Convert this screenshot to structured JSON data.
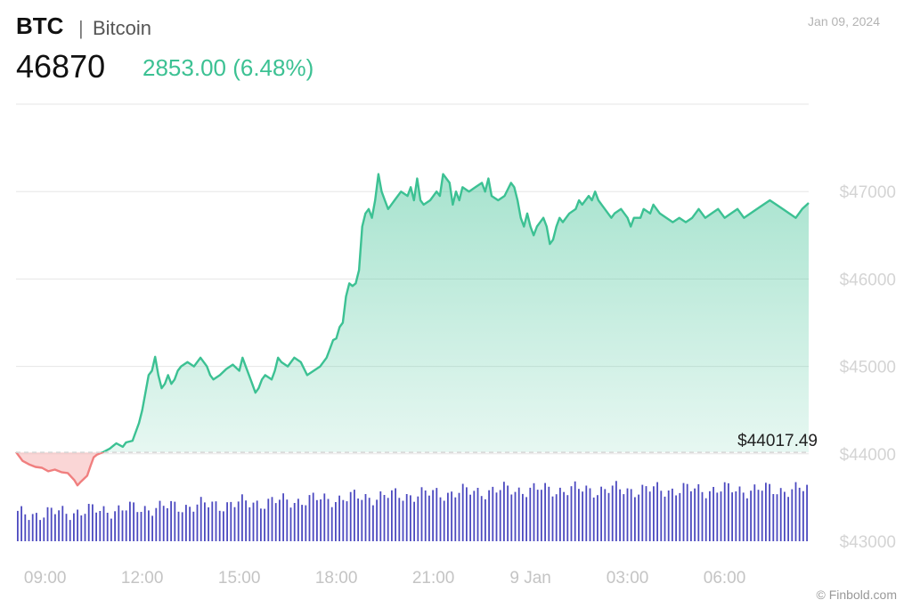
{
  "header": {
    "ticker": "BTC",
    "separator": "|",
    "name": "Bitcoin",
    "price": "46870",
    "change": "2853.00 (6.48%)",
    "date": "Jan 09, 2024"
  },
  "footer": {
    "credit": "© Finbold.com"
  },
  "colors": {
    "up": "#3cc193",
    "down": "#f07f7f",
    "volume": "#4c4ac0",
    "grid": "#e6e6e6"
  },
  "chart_data": {
    "type": "area",
    "title": "",
    "xlabel": "",
    "ylabel": "",
    "ylim": [
      43000,
      48000
    ],
    "grid": true,
    "legend": "none",
    "y_ticks": [
      {
        "value": 47000,
        "label": "$47000"
      },
      {
        "value": 46000,
        "label": "$46000"
      },
      {
        "value": 45000,
        "label": "$45000"
      },
      {
        "value": 44000,
        "label": "$44000"
      },
      {
        "value": 43000,
        "label": "$43000"
      }
    ],
    "x_ticks": [
      {
        "hours": 9,
        "label": "09:00"
      },
      {
        "hours": 12,
        "label": "12:00"
      },
      {
        "hours": 15,
        "label": "15:00"
      },
      {
        "hours": 18,
        "label": "18:00"
      },
      {
        "hours": 21,
        "label": "21:00"
      },
      {
        "hours": 24,
        "label": "9 Jan"
      },
      {
        "hours": 27,
        "label": "03:00"
      },
      {
        "hours": 30,
        "label": "06:00"
      }
    ],
    "x_range": [
      8.1,
      32.6
    ],
    "reference": {
      "value": 44017.49,
      "label": "$44017.49"
    },
    "series": [
      {
        "points": [
          [
            8.1,
            44020
          ],
          [
            8.3,
            43920
          ],
          [
            8.5,
            43880
          ],
          [
            8.7,
            43850
          ],
          [
            8.9,
            43840
          ],
          [
            9.1,
            43800
          ],
          [
            9.3,
            43820
          ],
          [
            9.5,
            43790
          ],
          [
            9.7,
            43780
          ],
          [
            9.9,
            43700
          ],
          [
            10.0,
            43640
          ],
          [
            10.1,
            43680
          ],
          [
            10.3,
            43750
          ],
          [
            10.4,
            43860
          ],
          [
            10.5,
            43960
          ],
          [
            10.6,
            43990
          ],
          [
            10.8,
            44020
          ],
          [
            11.0,
            44060
          ],
          [
            11.2,
            44120
          ],
          [
            11.4,
            44080
          ],
          [
            11.5,
            44130
          ],
          [
            11.7,
            44150
          ],
          [
            11.9,
            44350
          ],
          [
            12.0,
            44500
          ],
          [
            12.1,
            44700
          ],
          [
            12.2,
            44900
          ],
          [
            12.3,
            44950
          ],
          [
            12.4,
            45110
          ],
          [
            12.5,
            44900
          ],
          [
            12.6,
            44750
          ],
          [
            12.7,
            44800
          ],
          [
            12.8,
            44900
          ],
          [
            12.9,
            44800
          ],
          [
            13.0,
            44850
          ],
          [
            13.1,
            44950
          ],
          [
            13.2,
            45000
          ],
          [
            13.4,
            45050
          ],
          [
            13.6,
            45000
          ],
          [
            13.8,
            45100
          ],
          [
            13.9,
            45050
          ],
          [
            14.0,
            45000
          ],
          [
            14.1,
            44900
          ],
          [
            14.2,
            44850
          ],
          [
            14.4,
            44900
          ],
          [
            14.6,
            44970
          ],
          [
            14.8,
            45020
          ],
          [
            15.0,
            44950
          ],
          [
            15.1,
            45100
          ],
          [
            15.2,
            45000
          ],
          [
            15.3,
            44900
          ],
          [
            15.4,
            44800
          ],
          [
            15.5,
            44700
          ],
          [
            15.6,
            44750
          ],
          [
            15.7,
            44850
          ],
          [
            15.8,
            44900
          ],
          [
            16.0,
            44850
          ],
          [
            16.1,
            44950
          ],
          [
            16.2,
            45100
          ],
          [
            16.3,
            45050
          ],
          [
            16.5,
            45000
          ],
          [
            16.7,
            45100
          ],
          [
            16.9,
            45050
          ],
          [
            17.1,
            44900
          ],
          [
            17.3,
            44950
          ],
          [
            17.5,
            45000
          ],
          [
            17.7,
            45100
          ],
          [
            17.8,
            45200
          ],
          [
            17.9,
            45300
          ],
          [
            18.0,
            45320
          ],
          [
            18.1,
            45450
          ],
          [
            18.2,
            45500
          ],
          [
            18.3,
            45800
          ],
          [
            18.4,
            45950
          ],
          [
            18.5,
            45920
          ],
          [
            18.6,
            45950
          ],
          [
            18.7,
            46100
          ],
          [
            18.8,
            46600
          ],
          [
            18.9,
            46750
          ],
          [
            19.0,
            46800
          ],
          [
            19.1,
            46700
          ],
          [
            19.2,
            46900
          ],
          [
            19.3,
            47200
          ],
          [
            19.4,
            47000
          ],
          [
            19.5,
            46900
          ],
          [
            19.6,
            46800
          ],
          [
            19.7,
            46850
          ],
          [
            19.8,
            46900
          ],
          [
            20.0,
            47000
          ],
          [
            20.2,
            46950
          ],
          [
            20.3,
            47050
          ],
          [
            20.4,
            46900
          ],
          [
            20.5,
            47150
          ],
          [
            20.6,
            46900
          ],
          [
            20.7,
            46850
          ],
          [
            20.9,
            46900
          ],
          [
            21.1,
            47000
          ],
          [
            21.2,
            46950
          ],
          [
            21.3,
            47200
          ],
          [
            21.5,
            47100
          ],
          [
            21.6,
            46850
          ],
          [
            21.7,
            47000
          ],
          [
            21.8,
            46900
          ],
          [
            21.9,
            47050
          ],
          [
            22.1,
            47000
          ],
          [
            22.3,
            47050
          ],
          [
            22.5,
            47100
          ],
          [
            22.6,
            47000
          ],
          [
            22.7,
            47150
          ],
          [
            22.8,
            46950
          ],
          [
            23.0,
            46900
          ],
          [
            23.2,
            46950
          ],
          [
            23.4,
            47100
          ],
          [
            23.5,
            47050
          ],
          [
            23.6,
            46900
          ],
          [
            23.7,
            46700
          ],
          [
            23.8,
            46600
          ],
          [
            23.9,
            46750
          ],
          [
            24.0,
            46600
          ],
          [
            24.1,
            46500
          ],
          [
            24.2,
            46600
          ],
          [
            24.4,
            46700
          ],
          [
            24.5,
            46600
          ],
          [
            24.6,
            46400
          ],
          [
            24.7,
            46450
          ],
          [
            24.8,
            46600
          ],
          [
            24.9,
            46700
          ],
          [
            25.0,
            46650
          ],
          [
            25.2,
            46750
          ],
          [
            25.4,
            46800
          ],
          [
            25.5,
            46900
          ],
          [
            25.6,
            46850
          ],
          [
            25.8,
            46950
          ],
          [
            25.9,
            46900
          ],
          [
            26.0,
            47000
          ],
          [
            26.1,
            46900
          ],
          [
            26.2,
            46850
          ],
          [
            26.3,
            46800
          ],
          [
            26.5,
            46700
          ],
          [
            26.6,
            46750
          ],
          [
            26.8,
            46800
          ],
          [
            27.0,
            46700
          ],
          [
            27.1,
            46600
          ],
          [
            27.2,
            46700
          ],
          [
            27.4,
            46700
          ],
          [
            27.5,
            46800
          ],
          [
            27.7,
            46750
          ],
          [
            27.8,
            46850
          ],
          [
            28.0,
            46750
          ],
          [
            28.2,
            46700
          ],
          [
            28.4,
            46650
          ],
          [
            28.6,
            46700
          ],
          [
            28.8,
            46650
          ],
          [
            29.0,
            46700
          ],
          [
            29.2,
            46800
          ],
          [
            29.4,
            46700
          ],
          [
            29.6,
            46750
          ],
          [
            29.8,
            46800
          ],
          [
            30.0,
            46700
          ],
          [
            30.2,
            46750
          ],
          [
            30.4,
            46800
          ],
          [
            30.6,
            46700
          ],
          [
            30.8,
            46750
          ],
          [
            31.0,
            46800
          ],
          [
            31.2,
            46850
          ],
          [
            31.4,
            46900
          ],
          [
            31.6,
            46850
          ],
          [
            31.8,
            46800
          ],
          [
            32.0,
            46750
          ],
          [
            32.2,
            46700
          ],
          [
            32.4,
            46800
          ],
          [
            32.6,
            46870
          ]
        ]
      }
    ]
  }
}
